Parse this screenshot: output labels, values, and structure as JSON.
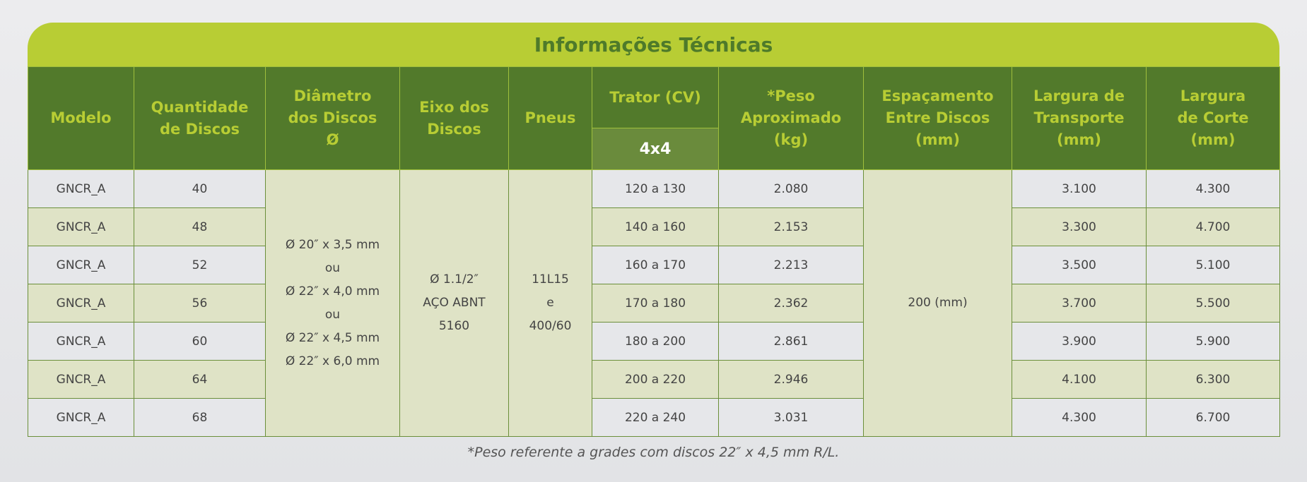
{
  "title": "Informações Técnicas",
  "headers": {
    "modelo": "Modelo",
    "quantidade": [
      "Quantidade",
      "de Discos"
    ],
    "diametro": [
      "Diâmetro",
      "dos Discos",
      "Ø"
    ],
    "eixo": [
      "Eixo dos",
      "Discos"
    ],
    "pneus": "Pneus",
    "trator": "Trator (CV)",
    "trator_sub": "4x4",
    "peso": [
      "*Peso",
      "Aproximado",
      "(kg)"
    ],
    "espacamento": [
      "Espaçamento",
      "Entre Discos",
      "(mm)"
    ],
    "transporte": [
      "Largura de",
      "Transporte",
      "(mm)"
    ],
    "corte": [
      "Largura",
      "de Corte",
      "(mm)"
    ]
  },
  "merged": {
    "diametro": [
      "Ø 20″ x 3,5 mm",
      "ou",
      "Ø 22″ x 4,0 mm",
      "ou",
      "Ø 22″ x 4,5 mm",
      "Ø 22″ x 6,0 mm"
    ],
    "eixo": [
      "Ø 1.1/2″",
      "AÇO ABNT",
      "5160"
    ],
    "pneus": [
      "11L15",
      "e",
      "400/60"
    ],
    "espacamento": "200 (mm)"
  },
  "rows": [
    {
      "modelo": "GNCR_A",
      "qtd": "40",
      "trator": "120 a 130",
      "peso": "2.080",
      "transporte": "3.100",
      "corte": "4.300"
    },
    {
      "modelo": "GNCR_A",
      "qtd": "48",
      "trator": "140 a 160",
      "peso": "2.153",
      "transporte": "3.300",
      "corte": "4.700"
    },
    {
      "modelo": "GNCR_A",
      "qtd": "52",
      "trator": "160 a 170",
      "peso": "2.213",
      "transporte": "3.500",
      "corte": "5.100"
    },
    {
      "modelo": "GNCR_A",
      "qtd": "56",
      "trator": "170 a 180",
      "peso": "2.362",
      "transporte": "3.700",
      "corte": "5.500"
    },
    {
      "modelo": "GNCR_A",
      "qtd": "60",
      "trator": "180 a 200",
      "peso": "2.861",
      "transporte": "3.900",
      "corte": "5.900"
    },
    {
      "modelo": "GNCR_A",
      "qtd": "64",
      "trator": "200 a 220",
      "peso": "2.946",
      "transporte": "4.100",
      "corte": "6.300"
    },
    {
      "modelo": "GNCR_A",
      "qtd": "68",
      "trator": "220 a 240",
      "peso": "3.031",
      "transporte": "4.300",
      "corte": "6.700"
    }
  ],
  "footnote": "*Peso referente a grades com discos 22″ x 4,5 mm R/L.",
  "colors": {
    "lime": "#b8cd34",
    "dark_green": "#527a2b",
    "row_gray": "#e6e7ea",
    "row_green": "#dfe3c6"
  }
}
